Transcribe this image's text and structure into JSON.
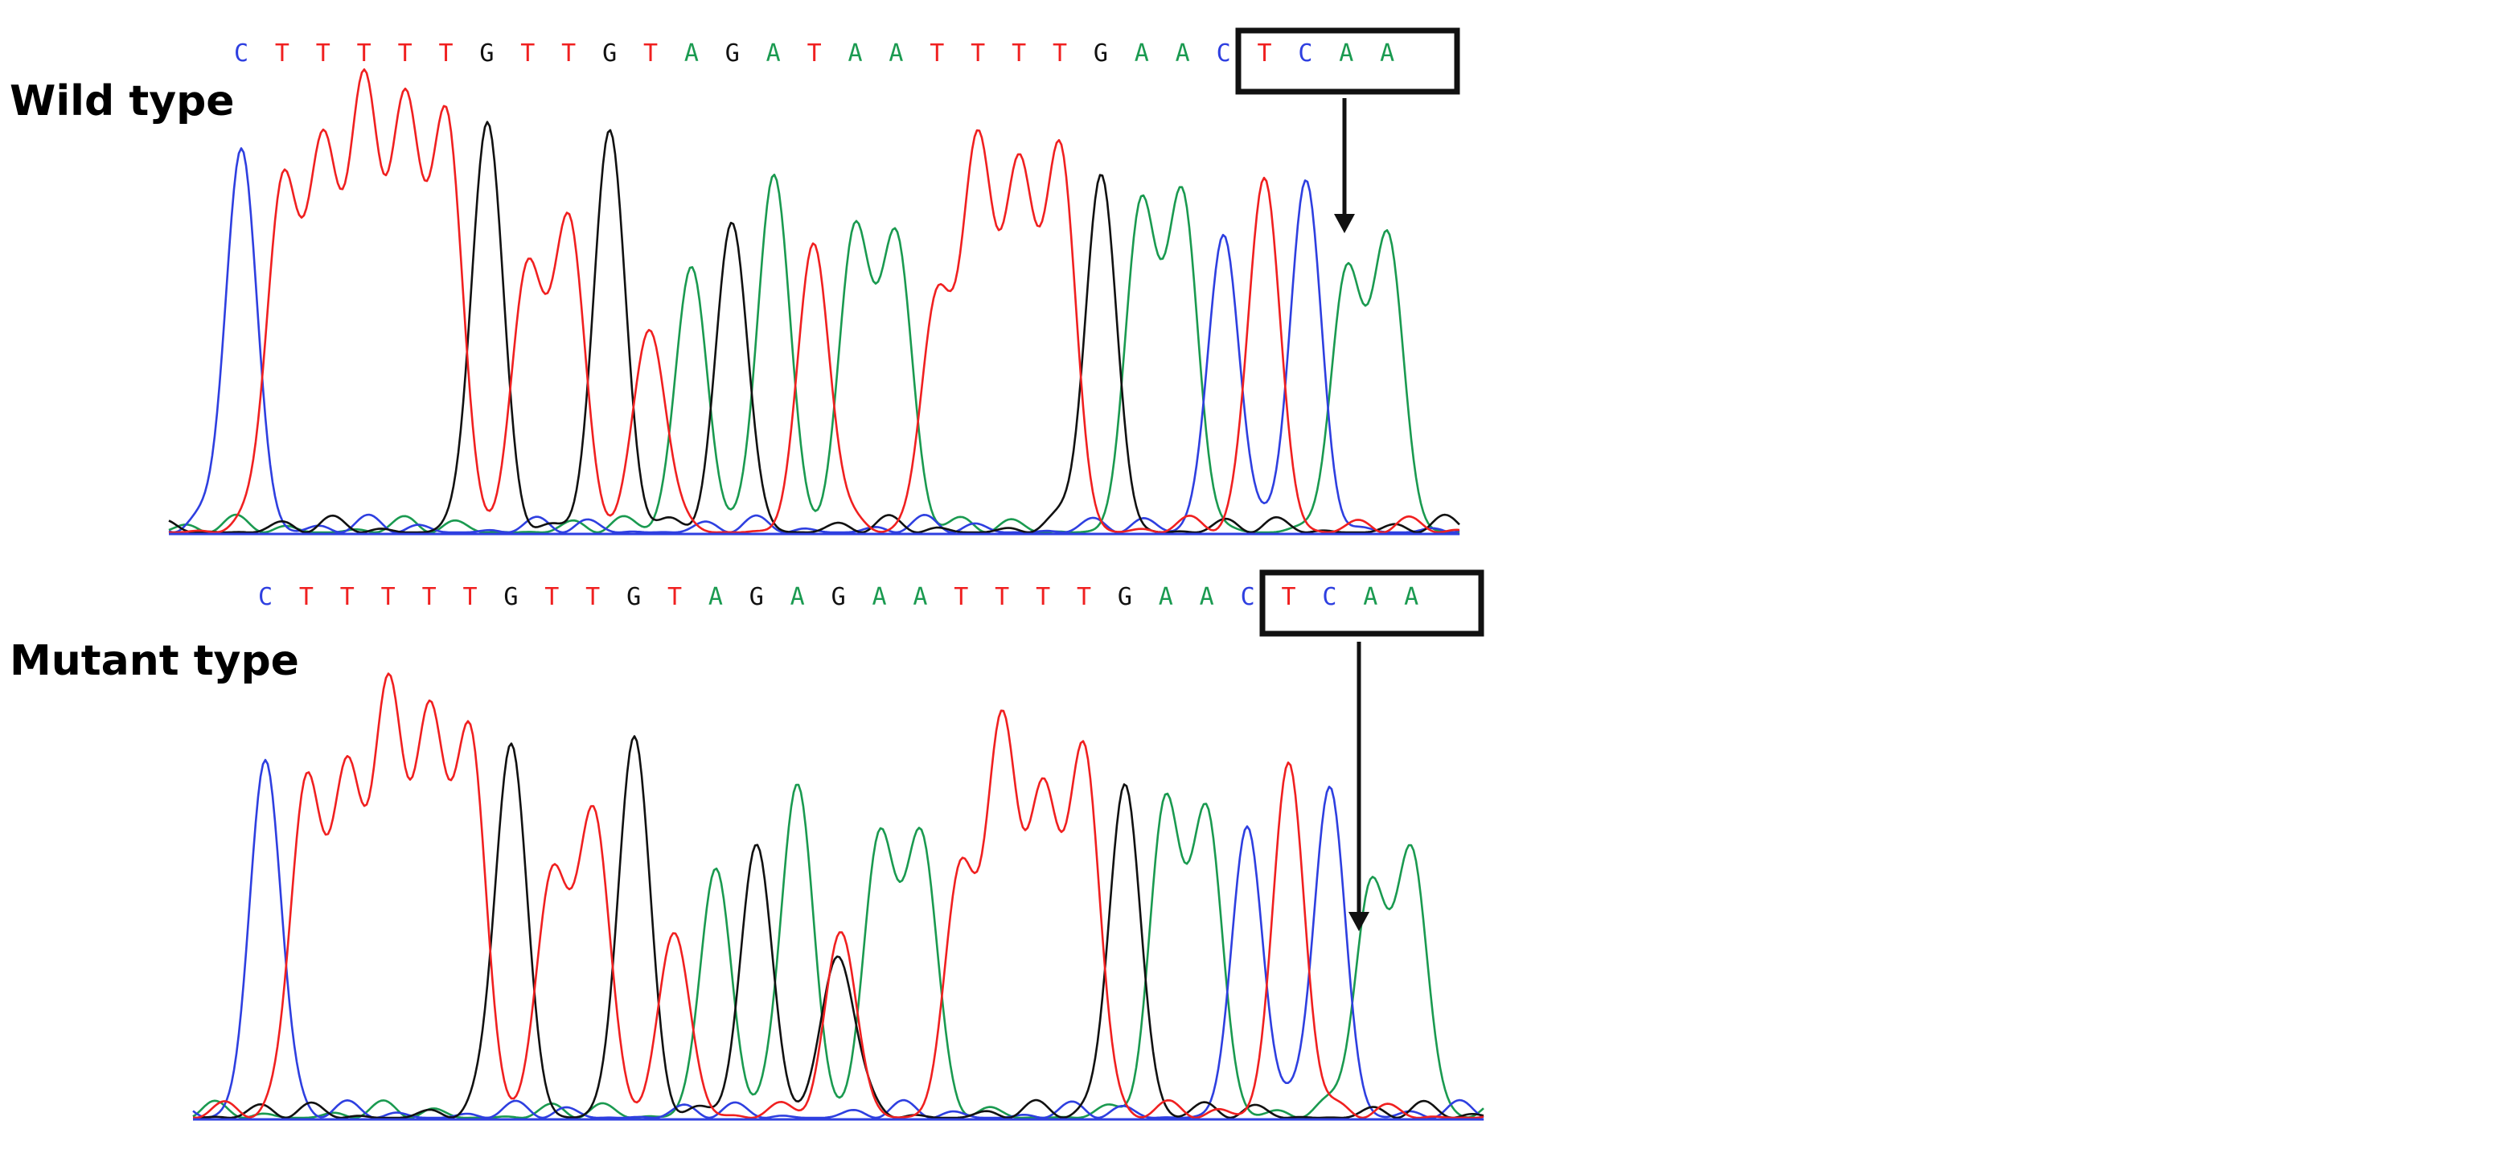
{
  "colors": {
    "A": "#1a9a50",
    "C": "#2e3fe0",
    "G": "#111111",
    "T": "#f02020",
    "box": "#111111",
    "arrow": "#111111",
    "text": "#000000"
  },
  "icons": {
    "arrow": "arrow-down-icon",
    "box": "codon-box"
  },
  "panels": [
    {
      "label": "Wild type",
      "sequence": [
        "C",
        "T",
        "T",
        "T",
        "T",
        "T",
        "G",
        "T",
        "T",
        "G",
        "T",
        "A",
        "G",
        "A",
        "T",
        "A",
        "A",
        "T",
        "T",
        "T",
        "T",
        "G",
        "A",
        "A",
        "C",
        "T",
        "C",
        "A",
        "A"
      ],
      "highlight": {
        "from": 13,
        "to": 15,
        "codon": "ATA",
        "changed_index": 14
      }
    },
    {
      "label": "Mutant type",
      "sequence": [
        "C",
        "T",
        "T",
        "T",
        "T",
        "T",
        "G",
        "T",
        "T",
        "G",
        "T",
        "A",
        "G",
        "A",
        "G",
        "A",
        "A",
        "T",
        "T",
        "T",
        "T",
        "G",
        "A",
        "A",
        "C",
        "T",
        "C",
        "A",
        "A"
      ],
      "highlight": {
        "from": 13,
        "to": 15,
        "codon": "AGA",
        "changed_index": 14
      }
    }
  ]
}
